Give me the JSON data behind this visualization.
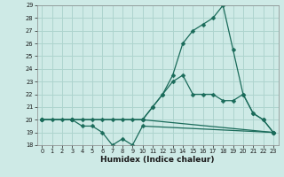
{
  "xlabel": "Humidex (Indice chaleur)",
  "bg_color": "#ceeae6",
  "grid_color": "#aed4ce",
  "line_color": "#1a6b5a",
  "xlim": [
    -0.5,
    23.5
  ],
  "ylim": [
    18,
    29
  ],
  "xticks": [
    0,
    1,
    2,
    3,
    4,
    5,
    6,
    7,
    8,
    9,
    10,
    11,
    12,
    13,
    14,
    15,
    16,
    17,
    18,
    19,
    20,
    21,
    22,
    23
  ],
  "yticks": [
    18,
    19,
    20,
    21,
    22,
    23,
    24,
    25,
    26,
    27,
    28,
    29
  ],
  "series1_x": [
    0,
    1,
    2,
    3,
    4,
    5,
    6,
    7,
    8,
    9,
    10,
    23
  ],
  "series1_y": [
    20,
    20,
    20,
    20,
    20,
    20,
    20,
    20,
    20,
    20,
    20,
    19
  ],
  "series2_x": [
    0,
    3,
    4,
    5,
    6,
    7,
    8,
    9,
    10,
    23
  ],
  "series2_y": [
    20,
    20,
    19.5,
    19.5,
    19,
    18,
    18.5,
    18,
    19.5,
    19
  ],
  "series3_x": [
    0,
    3,
    10,
    11,
    12,
    13,
    14,
    15,
    16,
    17,
    18,
    19,
    20,
    21,
    22,
    23
  ],
  "series3_y": [
    20,
    20,
    20,
    21,
    22,
    23,
    23.5,
    22,
    22,
    22,
    21.5,
    21.5,
    22,
    20.5,
    20,
    19
  ],
  "series4_x": [
    0,
    3,
    10,
    11,
    12,
    13,
    14,
    15,
    16,
    17,
    18,
    19,
    20,
    21,
    22,
    23
  ],
  "series4_y": [
    20,
    20,
    20,
    21,
    22,
    23.5,
    26,
    27,
    27.5,
    28,
    29,
    25.5,
    22,
    20.5,
    20,
    19
  ]
}
